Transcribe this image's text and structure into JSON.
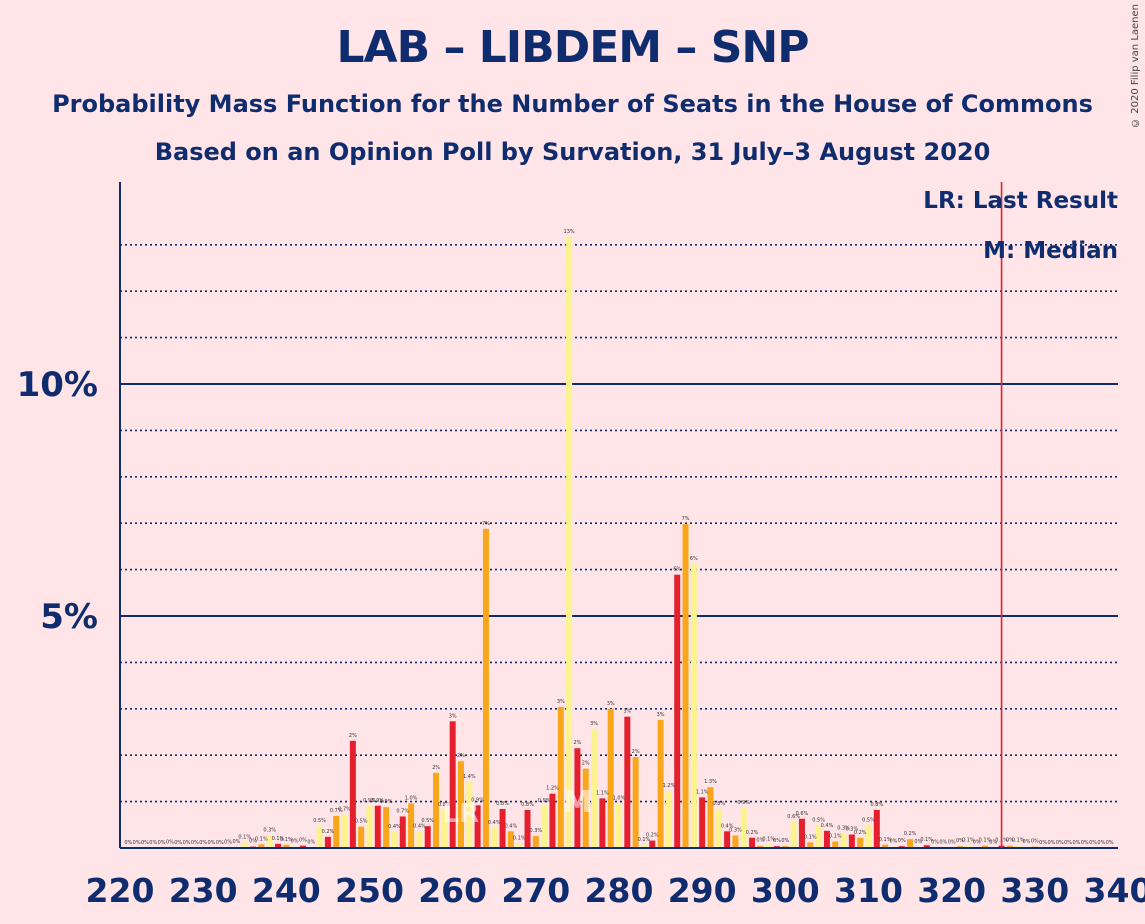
{
  "title": "LAB – LIBDEM – SNP",
  "subtitle1": "Probability Mass Function for the Number of Seats in the House of Commons",
  "subtitle2": "Based on an Opinion Poll by Survation, 31 July–3 August 2020",
  "copyright": "© 2020 Filip van Laenen",
  "legend": {
    "lr": "LR: Last Result",
    "median": "M: Median"
  },
  "bar_labels": {
    "lr": "LR",
    "median": "M"
  },
  "colors": {
    "background": "#FFE4E8",
    "axis": "#0F2D6E",
    "red": "#E4202D",
    "orange": "#FAA61A",
    "yellow": "#FDF38E",
    "last_result_line": "#E4202D"
  },
  "chart_data": {
    "type": "bar",
    "xlim": [
      220,
      340
    ],
    "ylim": [
      0,
      14
    ],
    "x_ticks": [
      220,
      230,
      240,
      250,
      260,
      270,
      280,
      290,
      300,
      310,
      320,
      330,
      340
    ],
    "y_major_ticks": [
      {
        "value": 5,
        "label": "5%"
      },
      {
        "value": 10,
        "label": "10%"
      }
    ],
    "y_minor_grid": [
      1,
      2,
      3,
      4,
      6,
      7,
      8,
      9,
      11,
      12,
      13
    ],
    "last_result": 326,
    "median": 275,
    "series": [
      {
        "seats": [
          221,
          222,
          223,
          224,
          225,
          226,
          227,
          228,
          229,
          230,
          231,
          232,
          233,
          234,
          235,
          236,
          237,
          238,
          239,
          240,
          241,
          242,
          243,
          244,
          245,
          246,
          247,
          248,
          249,
          250,
          251,
          252,
          253,
          254,
          255,
          256,
          257,
          258,
          259,
          260,
          261,
          262,
          263,
          264,
          265,
          266,
          267,
          268,
          269,
          270,
          271,
          272,
          273,
          274,
          275,
          276,
          277,
          278,
          279,
          280,
          281,
          282,
          283,
          284,
          285,
          286,
          287,
          288,
          289,
          290,
          291,
          292,
          293,
          294,
          295,
          296,
          297,
          298,
          299,
          300,
          301,
          302,
          303,
          304,
          305,
          306,
          307,
          308,
          309,
          310,
          311,
          312,
          313,
          314,
          315,
          316,
          317,
          318,
          319,
          320,
          321,
          322,
          323,
          324,
          325,
          326,
          327,
          328,
          329,
          330,
          331,
          332,
          333,
          334,
          335,
          336,
          337,
          338,
          339
        ],
        "values": [
          0,
          0,
          0,
          0,
          0,
          0.01,
          0,
          0,
          0,
          0,
          0,
          0,
          0.01,
          0.02,
          0.12,
          0.03,
          0.08,
          0.27,
          0.09,
          0.07,
          0.03,
          0.05,
          0.01,
          0.47,
          0.24,
          0.69,
          0.72,
          2.31,
          0.46,
          0.91,
          0.91,
          0.88,
          0.35,
          0.68,
          0.96,
          0.36,
          0.47,
          1.62,
          0.82,
          2.73,
          1.87,
          1.42,
          0.92,
          6.88,
          0.43,
          0.84,
          0.36,
          0.1,
          0.82,
          0.26,
          0.91,
          1.17,
          3.04,
          13.17,
          2.15,
          1.71,
          2.56,
          1.07,
          3.0,
          0.96,
          2.83,
          1.96,
          0.07,
          0.16,
          2.76,
          1.23,
          5.89,
          6.98,
          6.12,
          1.09,
          1.31,
          0.84,
          0.36,
          0.27,
          0.86,
          0.22,
          0.05,
          0.08,
          0.04,
          0.04,
          0.56,
          0.63,
          0.12,
          0.49,
          0.37,
          0.14,
          0.31,
          0.29,
          0.22,
          0.48,
          0.82,
          0.07,
          0.03,
          0.04,
          0.19,
          0.02,
          0.06,
          0.01,
          0.01,
          0.01,
          0.04,
          0.05,
          0.01,
          0.05,
          0.01,
          0.05,
          0.05,
          0.05,
          0.02,
          0.03,
          0,
          0,
          0,
          0,
          0,
          0,
          0,
          0,
          0
        ]
      }
    ],
    "point_labels": [
      {
        "x": 235,
        "label": "0.1%"
      },
      {
        "x": 237,
        "label": "0.1%"
      },
      {
        "x": 238,
        "label": "0.3%"
      },
      {
        "x": 244,
        "label": "0.5%"
      },
      {
        "x": 245,
        "label": "0.2%"
      },
      {
        "x": 246,
        "label": "0.7%"
      },
      {
        "x": 247,
        "label": "0.7%"
      },
      {
        "x": 248,
        "label": "2%"
      },
      {
        "x": 249,
        "label": "0.5%"
      },
      {
        "x": 250,
        "label": "0.9%"
      },
      {
        "x": 251,
        "label": "0.9%"
      },
      {
        "x": 252,
        "label": "0.9%"
      },
      {
        "x": 253,
        "label": "0.4%"
      },
      {
        "x": 254,
        "label": "0.7%"
      },
      {
        "x": 255,
        "label": "1.0%"
      },
      {
        "x": 256,
        "label": "0.4%"
      },
      {
        "x": 257,
        "label": "0.5%"
      },
      {
        "x": 258,
        "label": "2%"
      },
      {
        "x": 259,
        "label": "0.8%"
      },
      {
        "x": 260,
        "label": "3%"
      },
      {
        "x": 261,
        "label": "2%"
      },
      {
        "x": 262,
        "label": "1.4%"
      },
      {
        "x": 263,
        "label": "0.9%"
      },
      {
        "x": 264,
        "label": "7%"
      },
      {
        "x": 265,
        "label": "0.4%"
      },
      {
        "x": 266,
        "label": "0.8%"
      },
      {
        "x": 267,
        "label": "0.4%"
      },
      {
        "x": 268,
        "label": "0.1%"
      },
      {
        "x": 269,
        "label": "0.8%"
      },
      {
        "x": 270,
        "label": "0.3%"
      },
      {
        "x": 271,
        "label": "0.9%"
      },
      {
        "x": 272,
        "label": "1.2%"
      },
      {
        "x": 273,
        "label": "3%"
      },
      {
        "x": 274,
        "label": "13%"
      },
      {
        "x": 275,
        "label": "2%"
      },
      {
        "x": 276,
        "label": "2%"
      },
      {
        "x": 277,
        "label": "3%"
      },
      {
        "x": 278,
        "label": "1.1%"
      },
      {
        "x": 279,
        "label": "3%"
      },
      {
        "x": 280,
        "label": "1.0%"
      },
      {
        "x": 281,
        "label": "3%"
      },
      {
        "x": 282,
        "label": "2%"
      },
      {
        "x": 283,
        "label": "0.1%"
      },
      {
        "x": 284,
        "label": "0.2%"
      },
      {
        "x": 285,
        "label": "3%"
      },
      {
        "x": 286,
        "label": "1.2%"
      },
      {
        "x": 287,
        "label": "6%"
      },
      {
        "x": 288,
        "label": "7%"
      },
      {
        "x": 289,
        "label": "6%"
      },
      {
        "x": 290,
        "label": "1.1%"
      },
      {
        "x": 291,
        "label": "1.3%"
      },
      {
        "x": 292,
        "label": "0.8%"
      },
      {
        "x": 293,
        "label": "0.4%"
      },
      {
        "x": 294,
        "label": "0.3%"
      },
      {
        "x": 295,
        "label": "0.9%"
      },
      {
        "x": 296,
        "label": "0.2%"
      },
      {
        "x": 297,
        "label": "0%"
      },
      {
        "x": 298,
        "label": "0.1%"
      },
      {
        "x": 299,
        "label": "0%"
      },
      {
        "x": 300,
        "label": "0%"
      },
      {
        "x": 301,
        "label": "0.6%"
      },
      {
        "x": 302,
        "label": "0.6%"
      },
      {
        "x": 303,
        "label": "0.1%"
      },
      {
        "x": 304,
        "label": "0.5%"
      },
      {
        "x": 305,
        "label": "0.4%"
      },
      {
        "x": 306,
        "label": "0.1%"
      },
      {
        "x": 307,
        "label": "0.3%"
      },
      {
        "x": 308,
        "label": "0.3%"
      },
      {
        "x": 309,
        "label": "0.2%"
      },
      {
        "x": 310,
        "label": "0.5%"
      },
      {
        "x": 311,
        "label": "0.8%"
      },
      {
        "x": 312,
        "label": "0.1%"
      },
      {
        "x": 313,
        "label": "0%"
      },
      {
        "x": 314,
        "label": "0%"
      },
      {
        "x": 315,
        "label": "0.2%"
      },
      {
        "x": 316,
        "label": "0%"
      },
      {
        "x": 317,
        "label": "0.1%"
      },
      {
        "x": 318,
        "label": "0%"
      },
      {
        "x": 319,
        "label": "0%"
      },
      {
        "x": 320,
        "label": "0%"
      },
      {
        "x": 321,
        "label": "0%"
      },
      {
        "x": 322,
        "label": "0.1%"
      },
      {
        "x": 323,
        "label": "0%"
      },
      {
        "x": 324,
        "label": "0.1%"
      },
      {
        "x": 325,
        "label": "0%"
      },
      {
        "x": 326,
        "label": "0.1%"
      },
      {
        "x": 327,
        "label": "0%"
      },
      {
        "x": 328,
        "label": "0.1%"
      },
      {
        "x": 329,
        "label": "0%"
      },
      {
        "x": 330,
        "label": "0%"
      },
      {
        "x": 221,
        "label": "0%"
      },
      {
        "x": 222,
        "label": "0%"
      },
      {
        "x": 223,
        "label": "0%"
      },
      {
        "x": 224,
        "label": "0%"
      },
      {
        "x": 225,
        "label": "0%"
      },
      {
        "x": 226,
        "label": "0%"
      },
      {
        "x": 227,
        "label": "0%"
      },
      {
        "x": 228,
        "label": "0%"
      },
      {
        "x": 229,
        "label": "0%"
      },
      {
        "x": 230,
        "label": "0%"
      },
      {
        "x": 231,
        "label": "0%"
      },
      {
        "x": 232,
        "label": "0%"
      },
      {
        "x": 233,
        "label": "0%"
      },
      {
        "x": 234,
        "label": "0%"
      },
      {
        "x": 236,
        "label": "0%"
      },
      {
        "x": 239,
        "label": "0.1%"
      },
      {
        "x": 240,
        "label": "0.1%"
      },
      {
        "x": 241,
        "label": "0%"
      },
      {
        "x": 242,
        "label": "0%"
      },
      {
        "x": 243,
        "label": "0%"
      },
      {
        "x": 331,
        "label": "0%"
      },
      {
        "x": 332,
        "label": "0%"
      },
      {
        "x": 333,
        "label": "0%"
      },
      {
        "x": 334,
        "label": "0%"
      },
      {
        "x": 335,
        "label": "0%"
      },
      {
        "x": 336,
        "label": "0%"
      },
      {
        "x": 337,
        "label": "0%"
      },
      {
        "x": 338,
        "label": "0%"
      },
      {
        "x": 339,
        "label": "0%"
      }
    ]
  }
}
